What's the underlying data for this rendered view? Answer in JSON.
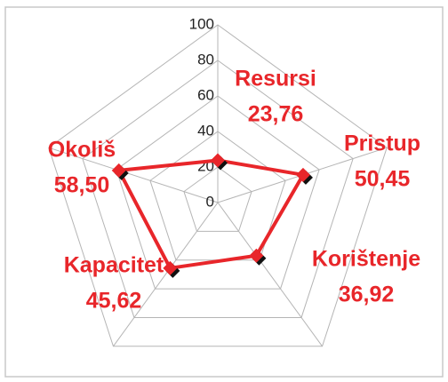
{
  "chart_data": {
    "type": "radar",
    "categories": [
      "Resursi",
      "Pristup",
      "Korištenje",
      "Kapacitet",
      "Okoliš"
    ],
    "values": [
      23.76,
      50.45,
      36.92,
      45.62,
      58.5
    ],
    "value_labels": [
      "23,76",
      "50,45",
      "36,92",
      "45,62",
      "58,50"
    ],
    "color": "#e8262a",
    "rlim": [
      0,
      100
    ],
    "rticks": [
      0,
      20,
      40,
      60,
      80,
      100
    ],
    "grid": true
  }
}
